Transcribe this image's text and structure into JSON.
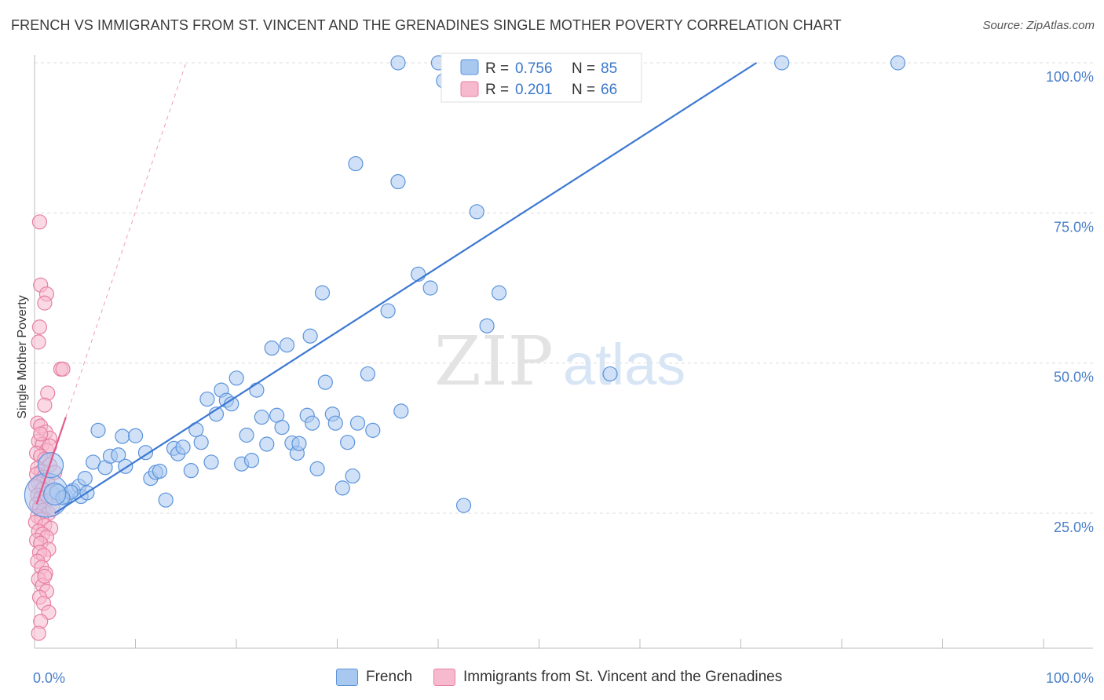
{
  "header": {
    "title": "FRENCH VS IMMIGRANTS FROM ST. VINCENT AND THE GRENADINES SINGLE MOTHER POVERTY CORRELATION CHART",
    "source": "Source: ZipAtlas.com"
  },
  "watermark": {
    "zip": "ZIP",
    "atlas": "atlas"
  },
  "colors": {
    "french_fill": "#a9c8f0",
    "french_stroke": "#5b93db",
    "french_line": "#3c78d2",
    "svg_fill": "#f7b9cd",
    "svg_stroke": "#e680a3",
    "svg_line": "#e45a8c",
    "tick_text": "#4a7fc8",
    "grid": "#dcdcdc"
  },
  "legend_box": {
    "rows": [
      {
        "r_label": "R = ",
        "r_value": "0.756",
        "n_label": "N = ",
        "n_value": "85"
      },
      {
        "r_label": "R = ",
        "r_value": "0.201",
        "n_label": "N = ",
        "n_value": "66"
      }
    ]
  },
  "chart_data": {
    "type": "scatter",
    "title": "FRENCH VS IMMIGRANTS FROM ST. VINCENT AND THE GRENADINES SINGLE MOTHER POVERTY CORRELATION CHART",
    "xlabel": "",
    "ylabel": "Single Mother Poverty",
    "xlim": [
      0,
      100
    ],
    "ylim": [
      2,
      100
    ],
    "x_tick_labels": [
      "0.0%",
      "100.0%"
    ],
    "y_ticks": [
      25,
      50,
      75,
      100
    ],
    "y_tick_labels": [
      "25.0%",
      "50.0%",
      "75.0%",
      "100.0%"
    ],
    "grid": true,
    "legend_position": "top-center",
    "series": [
      {
        "name": "French",
        "r": 0.756,
        "n": 85,
        "trend": {
          "x": [
            2,
            71.5
          ],
          "y": [
            25,
            100
          ]
        },
        "points": [
          [
            1.2,
            28,
            28
          ],
          [
            2.3,
            28.5,
            10
          ],
          [
            3.1,
            27.8,
            9
          ],
          [
            3.8,
            28.8,
            9
          ],
          [
            4.4,
            29.5,
            9
          ],
          [
            5.0,
            30.8,
            9
          ],
          [
            5.8,
            33.5,
            9
          ],
          [
            6.3,
            38.8,
            9
          ],
          [
            7.0,
            32.6,
            9
          ],
          [
            7.5,
            34.5,
            9
          ],
          [
            8.3,
            34.7,
            9
          ],
          [
            8.7,
            37.8,
            9
          ],
          [
            9.0,
            32.8,
            9
          ],
          [
            10.0,
            37.9,
            9
          ],
          [
            11.0,
            35.1,
            9
          ],
          [
            11.5,
            30.8,
            9
          ],
          [
            12.0,
            31.8,
            9
          ],
          [
            12.4,
            32.0,
            9
          ],
          [
            13.0,
            27.2,
            9
          ],
          [
            13.8,
            35.8,
            9
          ],
          [
            14.2,
            34.9,
            9
          ],
          [
            14.7,
            36.0,
            9
          ],
          [
            15.5,
            32.1,
            9
          ],
          [
            16.0,
            38.9,
            9
          ],
          [
            16.5,
            36.8,
            9
          ],
          [
            17.1,
            44.0,
            9
          ],
          [
            17.5,
            33.5,
            9
          ],
          [
            18.0,
            41.5,
            9
          ],
          [
            18.5,
            45.5,
            9
          ],
          [
            19.0,
            43.8,
            9
          ],
          [
            19.5,
            43.2,
            9
          ],
          [
            20.0,
            47.5,
            9
          ],
          [
            20.5,
            33.2,
            9
          ],
          [
            21.0,
            38.0,
            9
          ],
          [
            21.5,
            33.8,
            9
          ],
          [
            22.0,
            45.5,
            9
          ],
          [
            22.5,
            41.0,
            9
          ],
          [
            23.0,
            36.5,
            9
          ],
          [
            23.5,
            52.5,
            9
          ],
          [
            24.0,
            41.3,
            9
          ],
          [
            24.5,
            39.3,
            9
          ],
          [
            25.0,
            53.0,
            9
          ],
          [
            25.5,
            36.7,
            9
          ],
          [
            26.0,
            35.0,
            9
          ],
          [
            26.2,
            36.6,
            9
          ],
          [
            27.0,
            41.3,
            9
          ],
          [
            27.3,
            54.5,
            9
          ],
          [
            27.5,
            40.0,
            9
          ],
          [
            28.0,
            32.4,
            9
          ],
          [
            28.5,
            61.7,
            9
          ],
          [
            28.8,
            46.8,
            9
          ],
          [
            29.5,
            41.5,
            9
          ],
          [
            29.8,
            40.0,
            9
          ],
          [
            30.5,
            29.2,
            9
          ],
          [
            31.0,
            36.8,
            9
          ],
          [
            31.5,
            31.2,
            9
          ],
          [
            32.0,
            40.0,
            9
          ],
          [
            31.8,
            83.2,
            9
          ],
          [
            33.0,
            48.2,
            9
          ],
          [
            33.5,
            38.8,
            9
          ],
          [
            35.0,
            58.7,
            9
          ],
          [
            36.0,
            80.2,
            9
          ],
          [
            36.0,
            100,
            9
          ],
          [
            36.3,
            42.0,
            9
          ],
          [
            38.0,
            64.8,
            9
          ],
          [
            39.2,
            62.5,
            9
          ],
          [
            40.0,
            100,
            9
          ],
          [
            40.5,
            97.0,
            9
          ],
          [
            41.5,
            100,
            9
          ],
          [
            42.5,
            26.3,
            9
          ],
          [
            43.8,
            75.2,
            9
          ],
          [
            44.2,
            100,
            9
          ],
          [
            44.8,
            56.2,
            9
          ],
          [
            46.0,
            61.7,
            9
          ],
          [
            48.5,
            100,
            9
          ],
          [
            51.0,
            100,
            9
          ],
          [
            57.0,
            48.2,
            9
          ],
          [
            74.0,
            100,
            9
          ],
          [
            85.5,
            100,
            9
          ],
          [
            4.6,
            27.8,
            9
          ],
          [
            3.6,
            28.5,
            9
          ],
          [
            2.8,
            27.6,
            9
          ],
          [
            2.0,
            28.2,
            14
          ],
          [
            1.6,
            33.0,
            16
          ],
          [
            5.2,
            28.4,
            9
          ]
        ]
      },
      {
        "name": "Immigrants from St. Vincent and the Grenadines",
        "r": 0.201,
        "n": 66,
        "trend": {
          "x": [
            0.2,
            3.1
          ],
          "y": [
            26.5,
            41.0
          ]
        },
        "trend_dashed": {
          "x": [
            3.1,
            15
          ],
          "y": [
            41.0,
            100
          ]
        },
        "points": [
          [
            0.5,
            73.5,
            9
          ],
          [
            0.6,
            63.0,
            9
          ],
          [
            0.5,
            56.0,
            9
          ],
          [
            0.4,
            53.5,
            9
          ],
          [
            1.2,
            61.5,
            9
          ],
          [
            1.0,
            60.0,
            9
          ],
          [
            2.6,
            49.0,
            9
          ],
          [
            2.8,
            49.0,
            9
          ],
          [
            1.3,
            45.0,
            9
          ],
          [
            1.0,
            43.0,
            9
          ],
          [
            0.3,
            40.0,
            9
          ],
          [
            0.6,
            39.5,
            9
          ],
          [
            1.1,
            38.5,
            9
          ],
          [
            1.5,
            37.5,
            9
          ],
          [
            0.4,
            37.0,
            9
          ],
          [
            0.8,
            36.5,
            9
          ],
          [
            1.2,
            35.5,
            9
          ],
          [
            0.2,
            35.0,
            9
          ],
          [
            0.6,
            34.5,
            9
          ],
          [
            1.0,
            34.0,
            9
          ],
          [
            1.5,
            33.0,
            9
          ],
          [
            0.3,
            32.5,
            9
          ],
          [
            0.7,
            32.0,
            9
          ],
          [
            0.2,
            31.5,
            9
          ],
          [
            0.9,
            31.0,
            9
          ],
          [
            1.3,
            30.5,
            9
          ],
          [
            0.4,
            30.0,
            9
          ],
          [
            0.1,
            29.5,
            9
          ],
          [
            0.8,
            29.0,
            9
          ],
          [
            1.7,
            28.5,
            9
          ],
          [
            0.3,
            28.0,
            9
          ],
          [
            0.6,
            27.5,
            9
          ],
          [
            1.1,
            27.0,
            9
          ],
          [
            0.2,
            26.5,
            9
          ],
          [
            0.5,
            26.0,
            9
          ],
          [
            0.9,
            25.5,
            9
          ],
          [
            1.4,
            25.0,
            9
          ],
          [
            0.3,
            24.5,
            9
          ],
          [
            0.7,
            24.0,
            9
          ],
          [
            0.1,
            23.5,
            9
          ],
          [
            1.0,
            23.0,
            9
          ],
          [
            1.6,
            22.5,
            9
          ],
          [
            0.4,
            22.0,
            9
          ],
          [
            0.8,
            21.5,
            9
          ],
          [
            1.2,
            21.0,
            9
          ],
          [
            0.2,
            20.5,
            9
          ],
          [
            0.6,
            20.0,
            9
          ],
          [
            1.4,
            19.0,
            9
          ],
          [
            0.5,
            18.5,
            9
          ],
          [
            0.9,
            18.0,
            9
          ],
          [
            0.3,
            17.0,
            9
          ],
          [
            0.7,
            16.0,
            9
          ],
          [
            1.1,
            15.0,
            9
          ],
          [
            0.4,
            14.0,
            9
          ],
          [
            0.8,
            13.0,
            9
          ],
          [
            1.2,
            12.0,
            9
          ],
          [
            0.5,
            11.0,
            9
          ],
          [
            0.9,
            10.0,
            9
          ],
          [
            1.4,
            8.5,
            9
          ],
          [
            0.6,
            7.0,
            9
          ],
          [
            0.4,
            5.0,
            9
          ],
          [
            1.0,
            14.5,
            9
          ],
          [
            1.8,
            25.8,
            9
          ],
          [
            2.0,
            31.8,
            9
          ],
          [
            1.5,
            36.2,
            9
          ],
          [
            0.6,
            38.2,
            9
          ]
        ]
      }
    ]
  }
}
